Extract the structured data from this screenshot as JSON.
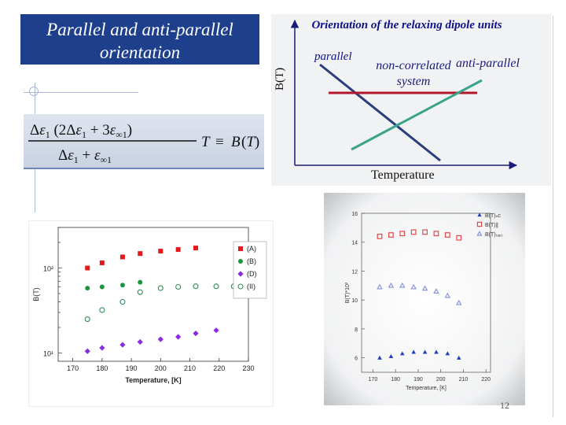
{
  "slide": {
    "title": "Parallel and anti-parallel orientation",
    "page_number": "12"
  },
  "orientation_diagram": {
    "title": "Orientation of the relaxing dipole units",
    "parallel_label": "parallel",
    "noncorrelated_label": "non-correlated system",
    "antiparallel_label": "anti-parallel",
    "x_axis_label": "Temperature",
    "y_axis_label": "B(T)"
  },
  "formula": {
    "text": "Δε1(2Δε1 + 3ε∞1) / (Δε1 + ε∞1) T ≡ B(T)"
  },
  "colors": {
    "title_bg": "#1e3f8c",
    "parallel_line": "#2a3f7a",
    "noncorrelated_line": "#b2182b",
    "antiparallel_line": "#3aa38c",
    "series_A": "#e31a1c",
    "series_B": "#1a9641",
    "series_D": "#8a2be2",
    "series_II": "#2e8b57"
  },
  "chart_data": [
    {
      "type": "scatter",
      "title": "",
      "xlabel": "Temperature, [K]",
      "ylabel": "B(T)",
      "xlim": [
        165,
        230
      ],
      "ylim": [
        8,
        300
      ],
      "yscale": "log",
      "xticks": [
        170,
        180,
        190,
        200,
        210,
        220,
        230
      ],
      "yticks": [
        "10¹",
        "10²"
      ],
      "legend_position": "top-right",
      "series": [
        {
          "name": "(A)",
          "marker": "square-filled",
          "x": [
            175,
            180,
            187,
            193,
            200,
            206,
            212
          ],
          "y": [
            100,
            115,
            135,
            148,
            158,
            165,
            172
          ]
        },
        {
          "name": "(B)",
          "marker": "circle-filled",
          "x": [
            175,
            180,
            187,
            193
          ],
          "y": [
            58,
            60,
            63,
            68
          ]
        },
        {
          "name": "(D)",
          "marker": "diamond-filled",
          "x": [
            175,
            180,
            187,
            193,
            200,
            206,
            212,
            219
          ],
          "y": [
            10.5,
            11.5,
            12.5,
            13.5,
            14.5,
            15.5,
            17,
            18.5
          ]
        },
        {
          "name": "(II)",
          "marker": "circle-open",
          "x": [
            175,
            180,
            187,
            193,
            200,
            206,
            212,
            219,
            225
          ],
          "y": [
            25,
            32,
            40,
            52,
            58,
            60,
            61,
            61,
            61
          ]
        }
      ]
    },
    {
      "type": "scatter",
      "title": "",
      "xlabel": "Temperature, [K]",
      "ylabel": "B(T)*10²",
      "xlim": [
        165,
        222
      ],
      "ylim": [
        5,
        16
      ],
      "xticks": [
        170,
        180,
        190,
        200,
        210,
        220
      ],
      "yticks": [
        6,
        8,
        10,
        12,
        14,
        16
      ],
      "legend_position": "top-right",
      "legend": [
        "B(T)ₙc",
        "B(T)∥",
        "B(T)₍ₐₚ₎"
      ],
      "series": [
        {
          "name": "B(T)nc",
          "marker": "triangle-filled",
          "x": [
            173,
            178,
            183,
            188,
            193,
            198,
            203,
            208
          ],
          "y": [
            6.0,
            6.1,
            6.3,
            6.4,
            6.4,
            6.4,
            6.3,
            6.0
          ]
        },
        {
          "name": "B(T)par",
          "marker": "square-open",
          "x": [
            173,
            178,
            183,
            188,
            193,
            198,
            203,
            208
          ],
          "y": [
            14.4,
            14.5,
            14.6,
            14.7,
            14.7,
            14.6,
            14.5,
            14.3
          ]
        },
        {
          "name": "B(T)ap",
          "marker": "triangle-open",
          "x": [
            173,
            178,
            183,
            188,
            193,
            198,
            203,
            208
          ],
          "y": [
            10.9,
            11.0,
            11.0,
            10.9,
            10.8,
            10.6,
            10.3,
            9.8
          ]
        }
      ]
    }
  ]
}
